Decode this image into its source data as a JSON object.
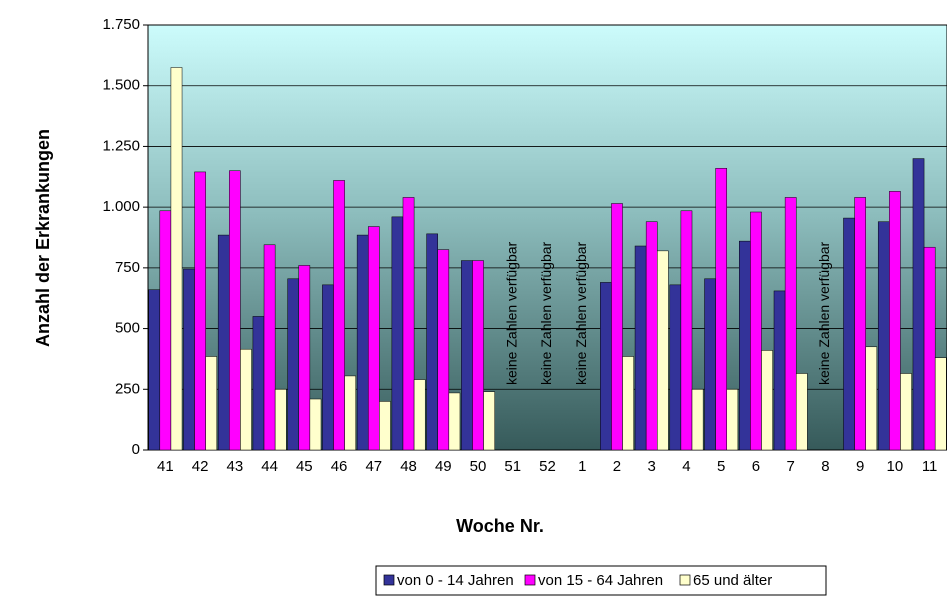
{
  "chart_data": {
    "type": "bar",
    "x_label": "Woche Nr.",
    "y_label": "Anzahl der Erkrankungen",
    "categories": [
      "41",
      "42",
      "43",
      "44",
      "45",
      "46",
      "47",
      "48",
      "49",
      "50",
      "51",
      "52",
      "1",
      "2",
      "3",
      "4",
      "5",
      "6",
      "7",
      "8",
      "9",
      "10",
      "11"
    ],
    "series": [
      {
        "name": "von 0 - 14 Jahren",
        "color": "#333399",
        "values": [
          660,
          745,
          885,
          550,
          705,
          680,
          885,
          960,
          890,
          780,
          null,
          null,
          null,
          690,
          840,
          680,
          705,
          860,
          655,
          null,
          955,
          940,
          1200
        ]
      },
      {
        "name": "von 15 - 64 Jahren",
        "color": "#ff00ff",
        "values": [
          985,
          1145,
          1150,
          845,
          760,
          1110,
          920,
          1040,
          825,
          780,
          null,
          null,
          null,
          1015,
          940,
          985,
          1160,
          980,
          1040,
          null,
          1040,
          1065,
          835
        ]
      },
      {
        "name": "65 und älter",
        "color": "#ffffcc",
        "values": [
          1575,
          385,
          415,
          250,
          210,
          305,
          200,
          290,
          235,
          240,
          null,
          null,
          null,
          385,
          820,
          250,
          250,
          410,
          315,
          null,
          425,
          315,
          380
        ]
      }
    ],
    "annotations": [
      {
        "text": "keine Zahlen verfügbar",
        "category": "51"
      },
      {
        "text": "keine Zahlen verfügbar",
        "category": "52"
      },
      {
        "text": "keine Zahlen verfügbar",
        "category": "1"
      },
      {
        "text": "keine Zahlen verfügbar",
        "category": "8"
      }
    ],
    "ylim": [
      0,
      1750
    ],
    "yticks": [
      0,
      250,
      500,
      750,
      {
        "value": 1000,
        "label": "1.000"
      },
      {
        "value": 1250,
        "label": "1.250"
      },
      {
        "value": 1500,
        "label": "1.500"
      },
      {
        "value": 1750,
        "label": "1.750"
      }
    ],
    "grid": true,
    "legend": "bottom"
  }
}
